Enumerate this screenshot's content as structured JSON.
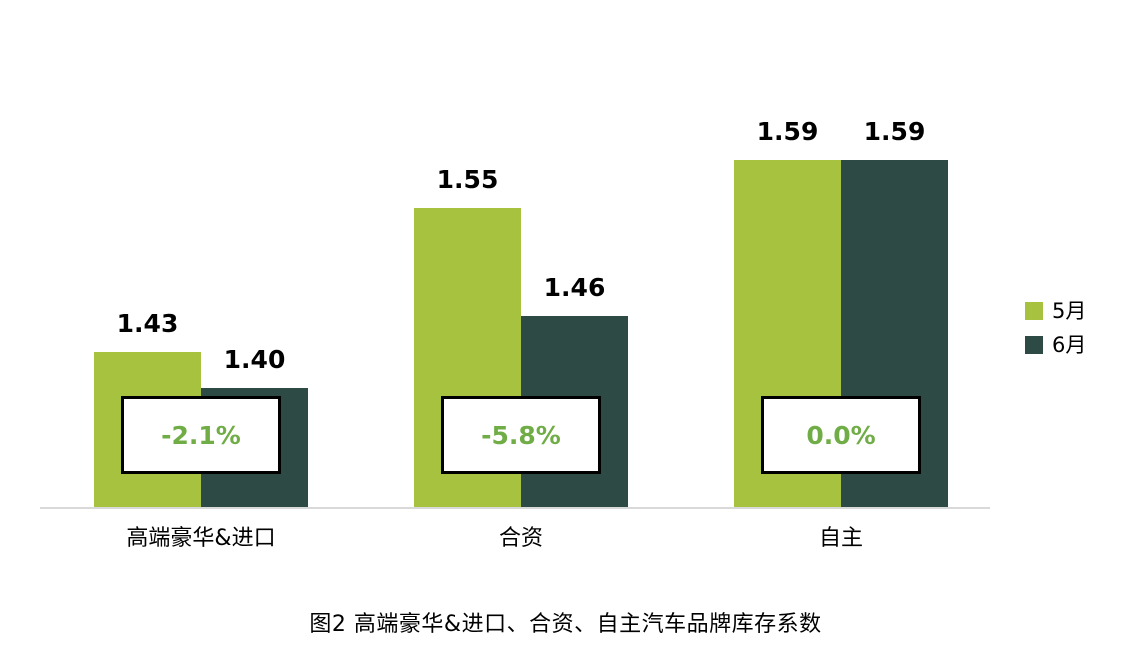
{
  "chart_data": {
    "type": "bar",
    "title": "图2 高端豪华&进口、合资、自主汽车品牌库存系数",
    "categories": [
      "高端豪华&进口",
      "合资",
      "自主"
    ],
    "series": [
      {
        "name": "5月",
        "color": "#a6c23e",
        "values": [
          1.43,
          1.55,
          1.59
        ]
      },
      {
        "name": "6月",
        "color": "#2d4a45",
        "values": [
          1.4,
          1.46,
          1.59
        ]
      }
    ],
    "value_labels": [
      [
        "1.43",
        "1.55",
        "1.59"
      ],
      [
        "1.40",
        "1.46",
        "1.59"
      ]
    ],
    "change_labels": [
      "-2.1%",
      "-5.8%",
      "0.0%"
    ],
    "change_label_color": "#70ad47",
    "ylim": [
      1.3,
      1.6
    ],
    "grid": false,
    "legend_position": "right",
    "axis_line_color": "#d9d9d9"
  }
}
